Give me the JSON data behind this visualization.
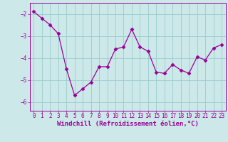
{
  "x": [
    0,
    1,
    2,
    3,
    4,
    5,
    6,
    7,
    8,
    9,
    10,
    11,
    12,
    13,
    14,
    15,
    16,
    17,
    18,
    19,
    20,
    21,
    22,
    23
  ],
  "y": [
    -1.9,
    -2.2,
    -2.5,
    -2.9,
    -4.5,
    -5.7,
    -5.4,
    -5.1,
    -4.4,
    -4.4,
    -3.6,
    -3.5,
    -2.7,
    -3.5,
    -3.7,
    -4.65,
    -4.7,
    -4.3,
    -4.55,
    -4.7,
    -3.95,
    -4.1,
    -3.55,
    -3.4
  ],
  "line_color": "#990099",
  "marker": "D",
  "marker_size": 2.5,
  "bg_color": "#cce8e8",
  "grid_color": "#99cccc",
  "tick_color": "#990099",
  "label_color": "#990099",
  "xlabel": "Windchill (Refroidissement éolien,°C)",
  "ylim": [
    -6.4,
    -1.5
  ],
  "xlim": [
    -0.5,
    23.5
  ],
  "yticks": [
    -6,
    -5,
    -4,
    -3,
    -2
  ],
  "xticks": [
    0,
    1,
    2,
    3,
    4,
    5,
    6,
    7,
    8,
    9,
    10,
    11,
    12,
    13,
    14,
    15,
    16,
    17,
    18,
    19,
    20,
    21,
    22,
    23
  ],
  "font_size": 5.5,
  "xlabel_font_size": 6.5
}
